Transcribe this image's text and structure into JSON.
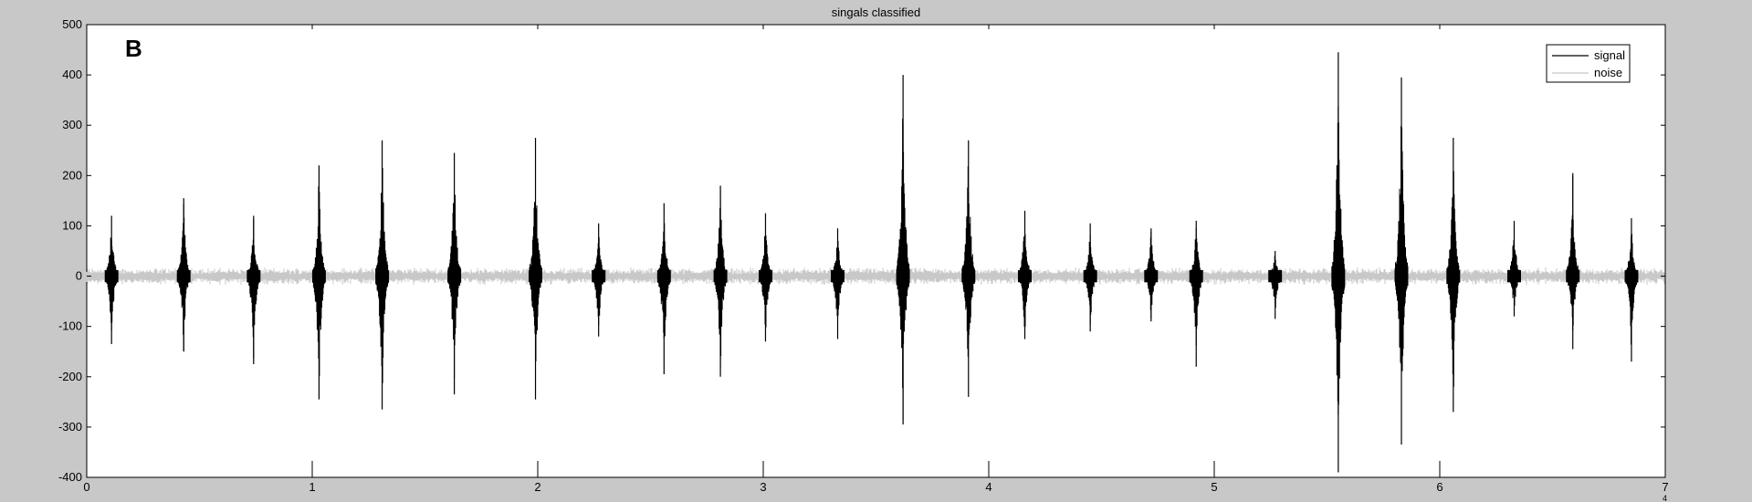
{
  "chart_data": {
    "type": "line",
    "title": "singals classified",
    "panel_label": "B",
    "xlabel": "",
    "ylabel": "",
    "xlim": [
      0,
      7
    ],
    "ylim": [
      -400,
      500
    ],
    "xticks": [
      0,
      1,
      2,
      3,
      4,
      5,
      6,
      7
    ],
    "yticks": [
      -400,
      -300,
      -200,
      -100,
      0,
      100,
      200,
      300,
      400,
      500
    ],
    "x_exponent_label": "4",
    "grid": false,
    "legend_position": "top-right",
    "colors": {
      "signal": "#000000",
      "noise": "#c8c8c8",
      "background": "#c8c8c8",
      "plot": "#ffffff"
    },
    "noise_amplitude": 18,
    "series": [
      {
        "name": "signal",
        "color": "#000000"
      },
      {
        "name": "noise",
        "color": "#c8c8c8"
      }
    ],
    "bursts": [
      {
        "x": 0.11,
        "max": 120,
        "min": -135
      },
      {
        "x": 0.43,
        "max": 155,
        "min": -150
      },
      {
        "x": 0.74,
        "max": 120,
        "min": -175
      },
      {
        "x": 1.03,
        "max": 220,
        "min": -245
      },
      {
        "x": 1.31,
        "max": 270,
        "min": -265
      },
      {
        "x": 1.63,
        "max": 245,
        "min": -235
      },
      {
        "x": 1.99,
        "max": 275,
        "min": -245
      },
      {
        "x": 2.27,
        "max": 105,
        "min": -120
      },
      {
        "x": 2.56,
        "max": 145,
        "min": -195
      },
      {
        "x": 2.81,
        "max": 180,
        "min": -200
      },
      {
        "x": 3.01,
        "max": 125,
        "min": -130
      },
      {
        "x": 3.33,
        "max": 95,
        "min": -125
      },
      {
        "x": 3.62,
        "max": 400,
        "min": -295
      },
      {
        "x": 3.91,
        "max": 270,
        "min": -240
      },
      {
        "x": 4.16,
        "max": 130,
        "min": -125
      },
      {
        "x": 4.45,
        "max": 105,
        "min": -110
      },
      {
        "x": 4.72,
        "max": 95,
        "min": -90
      },
      {
        "x": 4.92,
        "max": 110,
        "min": -180
      },
      {
        "x": 5.27,
        "max": 50,
        "min": -85
      },
      {
        "x": 5.55,
        "max": 445,
        "min": -390
      },
      {
        "x": 5.83,
        "max": 395,
        "min": -335
      },
      {
        "x": 6.06,
        "max": 275,
        "min": -270
      },
      {
        "x": 6.33,
        "max": 110,
        "min": -80
      },
      {
        "x": 6.59,
        "max": 205,
        "min": -145
      },
      {
        "x": 6.85,
        "max": 115,
        "min": -170
      }
    ]
  }
}
